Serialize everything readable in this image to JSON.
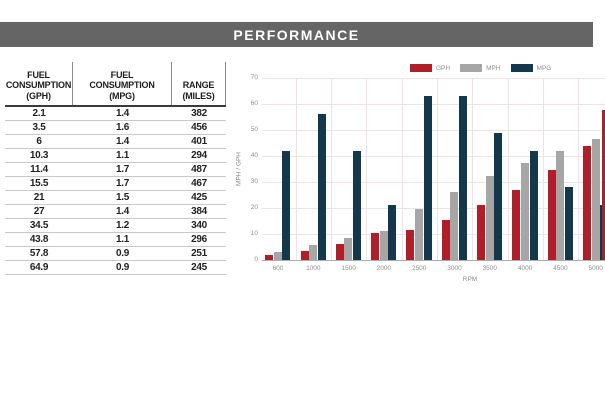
{
  "header": {
    "title": "PERFORMANCE"
  },
  "table": {
    "columns": [
      {
        "lines": [
          "FUEL",
          "CONSUMPTION",
          "(GPH)"
        ]
      },
      {
        "lines": [
          "FUEL",
          "CONSUMPTION",
          "(MPG)"
        ]
      },
      {
        "lines": [
          "RANGE",
          "(MILES)"
        ]
      }
    ],
    "rows": [
      [
        "2.1",
        "1.4",
        "382"
      ],
      [
        "3.5",
        "1.6",
        "456"
      ],
      [
        "6",
        "1.4",
        "401"
      ],
      [
        "10.3",
        "1.1",
        "294"
      ],
      [
        "11.4",
        "1.7",
        "487"
      ],
      [
        "15.5",
        "1.7",
        "467"
      ],
      [
        "21",
        "1.5",
        "425"
      ],
      [
        "27",
        "1.4",
        "384"
      ],
      [
        "34.5",
        "1.2",
        "340"
      ],
      [
        "43.8",
        "1.1",
        "296"
      ],
      [
        "57.8",
        "0.9",
        "251"
      ],
      [
        "64.9",
        "0.9",
        "245"
      ]
    ]
  },
  "chart_data": {
    "type": "bar",
    "title": "",
    "xlabel": "RPM",
    "ylabel": "MPH / GPH",
    "ylim": [
      0,
      70
    ],
    "yticks": [
      0,
      10,
      20,
      30,
      40,
      50,
      60,
      70
    ],
    "grid": true,
    "legend_position": "top",
    "categories": [
      "600",
      "1000",
      "1500",
      "2000",
      "2500",
      "3000",
      "3500",
      "4000",
      "4500",
      "5000"
    ],
    "series": [
      {
        "name": "GPH",
        "color": "#b01e28",
        "values": [
          2.1,
          3.5,
          6,
          10.3,
          11.4,
          15.5,
          21,
          27,
          34.5,
          43.8
        ]
      },
      {
        "name": "MPH",
        "color": "#a6a6a6",
        "values": [
          2.9,
          5.7,
          8.6,
          11,
          19.6,
          26,
          32.2,
          37.4,
          42,
          46.5
        ]
      },
      {
        "name": "MPG",
        "color": "#14384b",
        "values": [
          1.4,
          1.6,
          1.4,
          1.1,
          1.7,
          1.7,
          1.5,
          1.4,
          1.2,
          1.1
        ],
        "secondary_axis_range": [
          0.8,
          1.8
        ],
        "plotted_heights_primary": [
          42,
          56,
          42,
          21,
          63,
          63,
          49,
          42,
          28,
          21
        ]
      }
    ],
    "clipped_partial_bar": {
      "series": "GPH",
      "value": 57.8
    }
  },
  "colors": {
    "header_bar": "#656565",
    "red": "#b01e28",
    "gray": "#a6a6a6",
    "navy": "#14384b",
    "gridline": "#f2e2e2",
    "baseline": "#adadad",
    "axis_text": "#8f8f8f",
    "table_text": "#1d1d1d",
    "row_divider": "#c9c9c9",
    "header_rule": "#3a3a3a",
    "header_cell_divider": "#8a8a8a"
  }
}
